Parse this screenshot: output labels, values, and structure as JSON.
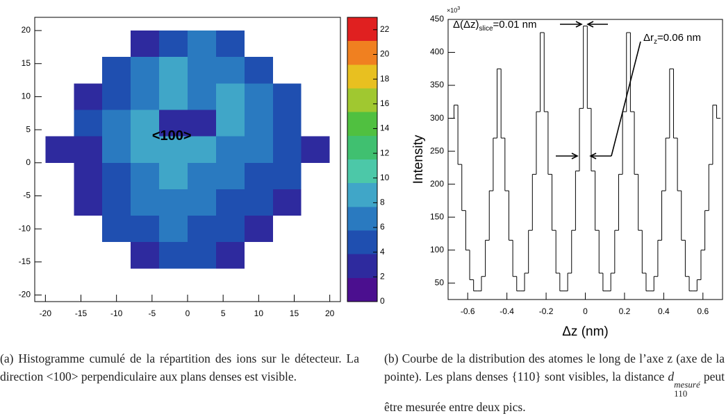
{
  "chart_data": [
    {
      "type": "heatmap",
      "xlim": [
        -21.5,
        21.5
      ],
      "ylim": [
        -21,
        22
      ],
      "xticks": [
        -20,
        -15,
        -10,
        -5,
        0,
        5,
        10,
        15,
        20
      ],
      "yticks": [
        -20,
        -15,
        -10,
        -5,
        0,
        5,
        10,
        15,
        20
      ],
      "x": [
        -18,
        -14,
        -10,
        -6,
        -2,
        2,
        6,
        10,
        14,
        18
      ],
      "y": [
        18,
        14,
        10,
        6,
        2,
        -2,
        -6,
        -10,
        -14,
        -18
      ],
      "z": [
        [
          null,
          null,
          null,
          3,
          5,
          6,
          4,
          null,
          null,
          null
        ],
        [
          null,
          null,
          4,
          6,
          8,
          7,
          6,
          4,
          null,
          null
        ],
        [
          null,
          3,
          5,
          7,
          9,
          7,
          8,
          6,
          4,
          null
        ],
        [
          null,
          4,
          6,
          8,
          2,
          2,
          8,
          6,
          4,
          null
        ],
        [
          2,
          3,
          6,
          8,
          9,
          8,
          7,
          6,
          5,
          2
        ],
        [
          null,
          3,
          5,
          7,
          8,
          7,
          6,
          5,
          4,
          null
        ],
        [
          null,
          3,
          5,
          6,
          7,
          6,
          5,
          5,
          3,
          null
        ],
        [
          null,
          null,
          4,
          5,
          6,
          5,
          5,
          3,
          null,
          null
        ],
        [
          null,
          null,
          null,
          3,
          4,
          4,
          3,
          null,
          null,
          null
        ],
        [
          null,
          null,
          null,
          null,
          null,
          null,
          null,
          null,
          null,
          null
        ]
      ],
      "zlim": [
        0,
        23
      ],
      "zticks": [
        0,
        2,
        4,
        6,
        8,
        10,
        12,
        14,
        16,
        18,
        20,
        22
      ],
      "palette": [
        "#4b0f8f",
        "#2e2a9e",
        "#1f4fb0",
        "#2a7ac0",
        "#40a6c8",
        "#4cc8a8",
        "#40c070",
        "#50c040",
        "#a0c830",
        "#e8c020",
        "#f08020",
        "#e02020"
      ],
      "annotation": "<100>"
    },
    {
      "type": "histogram",
      "ylabel": "Intensity",
      "xlabel": "Δz (nm)",
      "multiplier": {
        "base": "×10",
        "exp": "3"
      },
      "xlim": [
        -0.7,
        0.7
      ],
      "ylim": [
        25,
        450
      ],
      "xticks": [
        -0.6,
        -0.4,
        -0.2,
        0,
        0.2,
        0.4,
        0.6
      ],
      "yticks": [
        50,
        100,
        150,
        200,
        250,
        300,
        350,
        400,
        450
      ],
      "color": "#000000",
      "bins": [
        -0.69,
        -0.67,
        -0.65,
        -0.63,
        -0.61,
        -0.59,
        -0.57,
        -0.55,
        -0.53,
        -0.51,
        -0.49,
        -0.47,
        -0.45,
        -0.43,
        -0.41,
        -0.39,
        -0.37,
        -0.35,
        -0.33,
        -0.31,
        -0.29,
        -0.27,
        -0.25,
        -0.23,
        -0.21,
        -0.19,
        -0.17,
        -0.15,
        -0.13,
        -0.11,
        -0.09,
        -0.07,
        -0.05,
        -0.03,
        -0.01,
        0.01,
        0.03,
        0.05,
        0.07,
        0.09,
        0.11,
        0.13,
        0.15,
        0.17,
        0.19,
        0.21,
        0.23,
        0.25,
        0.27,
        0.29,
        0.31,
        0.33,
        0.35,
        0.37,
        0.39,
        0.41,
        0.43,
        0.45,
        0.47,
        0.49,
        0.51,
        0.53,
        0.55,
        0.57,
        0.59,
        0.61,
        0.63,
        0.65,
        0.67,
        0.69
      ],
      "values": [
        300,
        320,
        230,
        160,
        100,
        55,
        38,
        38,
        60,
        115,
        190,
        270,
        375,
        270,
        190,
        115,
        60,
        38,
        38,
        65,
        130,
        215,
        310,
        430,
        310,
        215,
        130,
        65,
        38,
        38,
        65,
        130,
        220,
        315,
        440,
        315,
        220,
        130,
        65,
        38,
        38,
        65,
        130,
        215,
        310,
        430,
        310,
        215,
        130,
        65,
        38,
        38,
        60,
        115,
        190,
        270,
        375,
        270,
        190,
        115,
        60,
        38,
        38,
        55,
        100,
        160,
        230,
        320,
        300
      ],
      "annotations": [
        {
          "head": "Δ(Δz)",
          "sub": "slice",
          "tail": "=0.01 nm"
        },
        {
          "head": "Δr",
          "sub": "z",
          "tail": "=0.06 nm"
        }
      ]
    }
  ],
  "captions": [
    {
      "label": "(a)",
      "text": "Histogramme cumulé de la répartition des ions sur le détecteur. La direction <100> perpendiculaire aux plans denses est visible."
    },
    {
      "label": "(b)",
      "before": "Courbe de la distribution des atomes le long de l’axe z (axe de la pointe). Les plans denses {110} sont visibles, la distance",
      "math": {
        "base": "d",
        "sub": "110",
        "sup": "mesuré"
      },
      "after": "peut être mesurée entre deux pics."
    }
  ]
}
